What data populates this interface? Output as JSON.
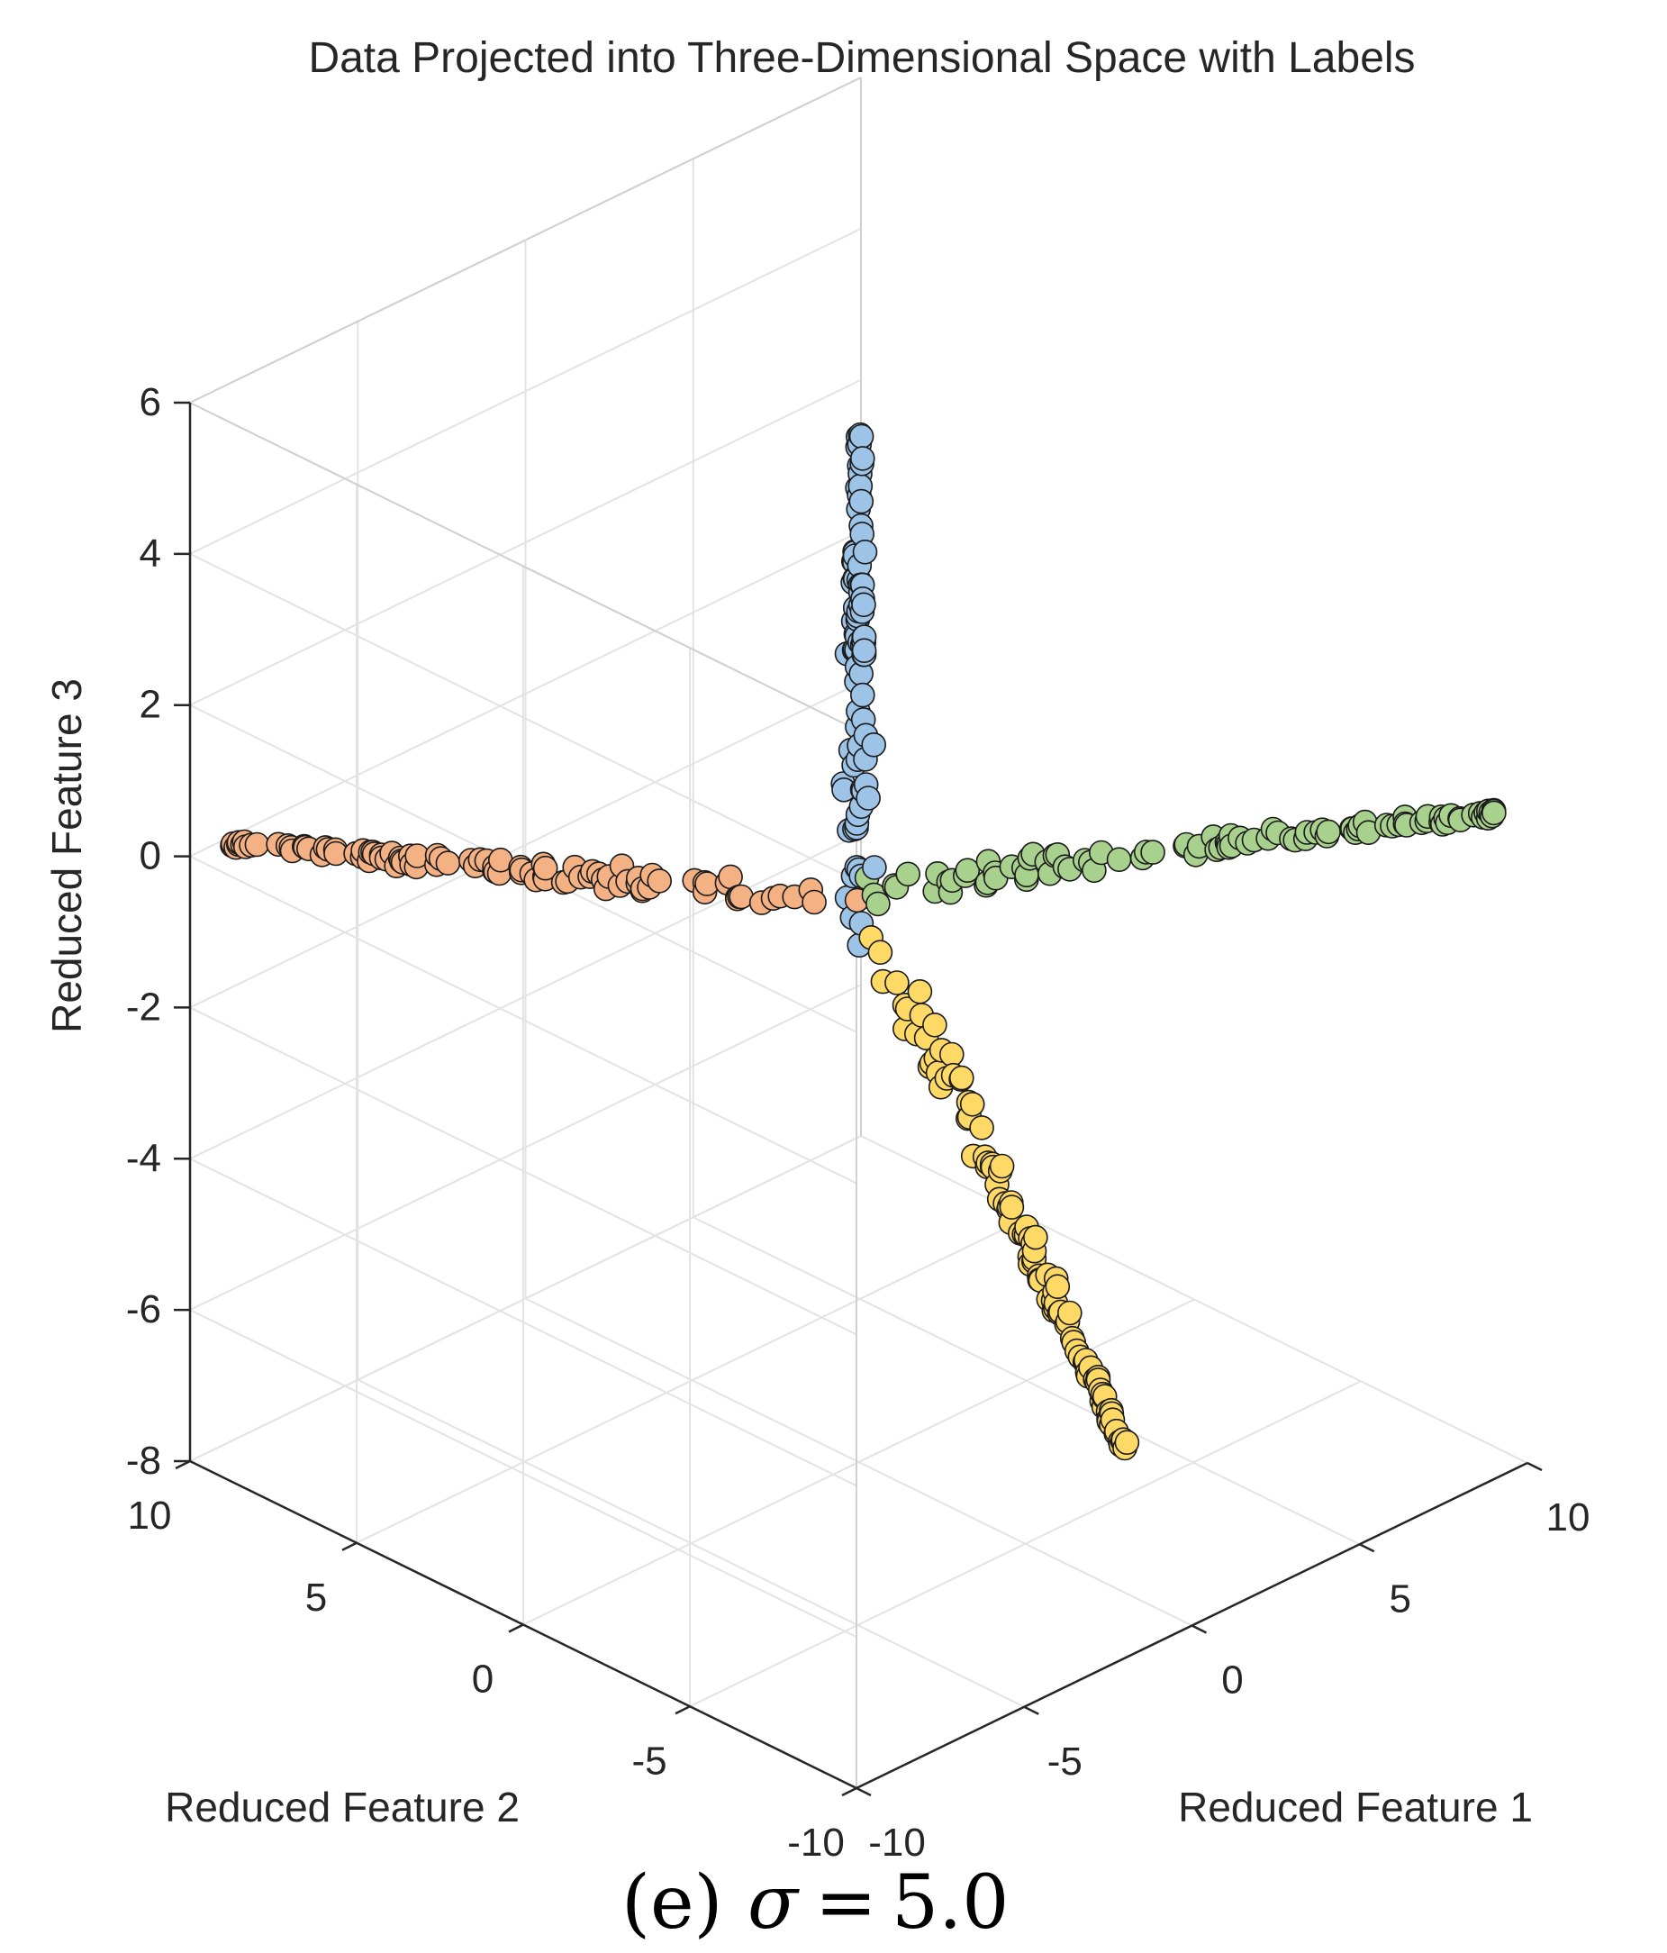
{
  "caption": {
    "label": "(e)",
    "symbol": "σ",
    "equals": "=",
    "value": "5.0"
  },
  "chart_data": {
    "type": "scatter",
    "projection": "3d",
    "title": "Data Projected into Three-Dimensional Space with Labels",
    "xlabel": "Reduced Feature 1",
    "ylabel": "Reduced Feature 2",
    "zlabel": "Reduced Feature 3",
    "xlim": [
      -10,
      10
    ],
    "ylim": [
      -10,
      10
    ],
    "zlim": [
      -8,
      6
    ],
    "x_ticks": [
      "-10",
      "-5",
      "0",
      "5",
      "10"
    ],
    "y_ticks": [
      "-10",
      "-5",
      "0",
      "5",
      "10"
    ],
    "z_ticks": [
      "-8",
      "-6",
      "-4",
      "-2",
      "0",
      "2",
      "4",
      "6"
    ],
    "grid": true,
    "legend": "none",
    "series": [
      {
        "color": "#9dc3e6",
        "start": [
          0,
          0,
          -1.0
        ],
        "end": [
          0,
          0,
          5.8
        ],
        "count": 90
      },
      {
        "color": "#f4b183",
        "start": [
          0.5,
          0.5,
          -0.8
        ],
        "end": [
          -9.5,
          9.5,
          0.2
        ],
        "count": 100
      },
      {
        "color": "#a9d18e",
        "start": [
          0.5,
          0.5,
          -0.6
        ],
        "end": [
          9.6,
          -9.6,
          0.6
        ],
        "count": 100
      },
      {
        "color": "#ffd966",
        "start": [
          0.3,
          -0.3,
          -1.0
        ],
        "end": [
          4.0,
          -4.0,
          -7.8
        ],
        "count": 110
      }
    ]
  }
}
